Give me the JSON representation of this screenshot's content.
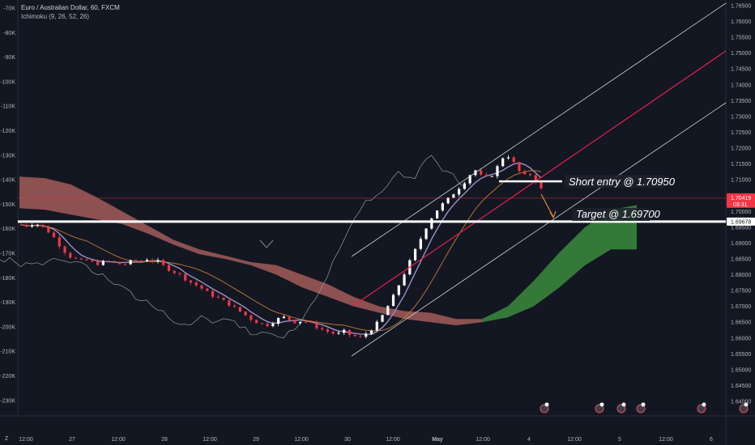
{
  "legend": {
    "symbol": "Euro / Australian Dollar, 60, FXCM",
    "indicator": "Ichimoku (9, 26, 52, 26)"
  },
  "annotations": {
    "short_entry": "Short entry @ 1.70950",
    "target": "Target @ 1.69700"
  },
  "price_tags": {
    "last_price": "1.70419",
    "countdown": "03:31",
    "target_level": "1.69678"
  },
  "corner_label": "Z",
  "colors": {
    "background": "#131722",
    "bull_candle": "#ffffff",
    "bear_candle": "#f23645",
    "red_cloud": "#b56560",
    "green_cloud": "#3b8b3b",
    "channel": "#d1d4dc",
    "channel_mid": "#e91e4f",
    "tenkan": "#9c8fc7",
    "kijun": "#c57a2c",
    "chikou": "#9598a1",
    "price_tag": "#f23645"
  },
  "chart_data": {
    "type": "candlestick",
    "symbol": "EURAUD",
    "timeframe": "60",
    "indicator": "Ichimoku (9, 26, 52, 26)",
    "price_axis": {
      "range": [
        1.638,
        1.766
      ],
      "ticks": [
        "1.76500",
        "1.76000",
        "1.75500",
        "1.75000",
        "1.74500",
        "1.74000",
        "1.73500",
        "1.73000",
        "1.72500",
        "1.72000",
        "1.71500",
        "1.71000",
        "1.70500",
        "1.70000",
        "1.69500",
        "1.69000",
        "1.68500",
        "1.68000",
        "1.67500",
        "1.67000",
        "1.66500",
        "1.66000",
        "1.65500",
        "1.65000",
        "1.64500",
        "1.64000"
      ]
    },
    "left_axis": {
      "ticks": [
        "-70K",
        "-80K",
        "-90K",
        "-100K",
        "-110K",
        "-120K",
        "-130K",
        "-140K",
        "-150K",
        "-160K",
        "-170K",
        "-180K",
        "-190K",
        "-200K",
        "-210K",
        "-220K",
        "-230K"
      ]
    },
    "time_axis": {
      "ticks": [
        "12:00",
        "27",
        "12:00",
        "28",
        "12:00",
        "29",
        "12:00",
        "30",
        "12:00",
        "May",
        "12:00",
        "4",
        "12:00",
        "5",
        "12:00",
        "6"
      ]
    },
    "levels": [
      {
        "label": "Short entry @ 1.70950",
        "price": 1.7095
      },
      {
        "label": "Target @ 1.69700",
        "price": 1.697
      },
      {
        "label": "last price",
        "price": 1.70419
      },
      {
        "label": "target level",
        "price": 1.69678
      }
    ],
    "candle_path": [
      1.6958,
      1.6955,
      1.6962,
      1.6958,
      1.6945,
      1.693,
      1.6905,
      1.688,
      1.686,
      1.685,
      1.6842,
      1.6846,
      1.6838,
      1.6835,
      1.684,
      1.6843,
      1.6836,
      1.6832,
      1.6838,
      1.6845,
      1.6842,
      1.685,
      1.6845,
      1.684,
      1.6825,
      1.6815,
      1.6805,
      1.6795,
      1.678,
      1.677,
      1.676,
      1.6745,
      1.6735,
      1.6725,
      1.6715,
      1.6705,
      1.669,
      1.668,
      1.6665,
      1.6655,
      1.6645,
      1.664,
      1.665,
      1.666,
      1.6665,
      1.6658,
      1.665,
      1.6655,
      1.665,
      1.664,
      1.663,
      1.6622,
      1.6616,
      1.6612,
      1.662,
      1.661,
      1.6605,
      1.66,
      1.662,
      1.6635,
      1.6655,
      1.669,
      1.672,
      1.676,
      1.68,
      1.684,
      1.688,
      1.692,
      1.696,
      1.699,
      1.7015,
      1.703,
      1.705,
      1.707,
      1.709,
      1.7115,
      1.713,
      1.711,
      1.7105,
      1.712,
      1.715,
      1.7185,
      1.7165,
      1.7135,
      1.711,
      1.712,
      1.71,
      1.707
    ],
    "ichimoku": {
      "red_cloud_top": [
        1.711,
        1.7105,
        1.7085,
        1.7045,
        1.7,
        1.6955,
        1.691,
        1.688,
        1.686,
        1.684,
        1.683,
        1.68,
        1.677,
        1.673,
        1.67,
        1.6685,
        1.668,
        1.666,
        1.666
      ],
      "red_cloud_bottom": [
        1.701,
        1.7005,
        1.699,
        1.6975,
        1.696,
        1.693,
        1.6895,
        1.6865,
        1.685,
        1.683,
        1.68,
        1.676,
        1.673,
        1.67,
        1.668,
        1.666,
        1.665,
        1.664,
        1.665
      ],
      "green_cloud_top": [
        1.666,
        1.67,
        1.678,
        1.687,
        1.695,
        1.7005,
        1.702
      ],
      "green_cloud_bottom": [
        1.665,
        1.6665,
        1.67,
        1.676,
        1.683,
        1.688,
        1.688
      ]
    }
  }
}
